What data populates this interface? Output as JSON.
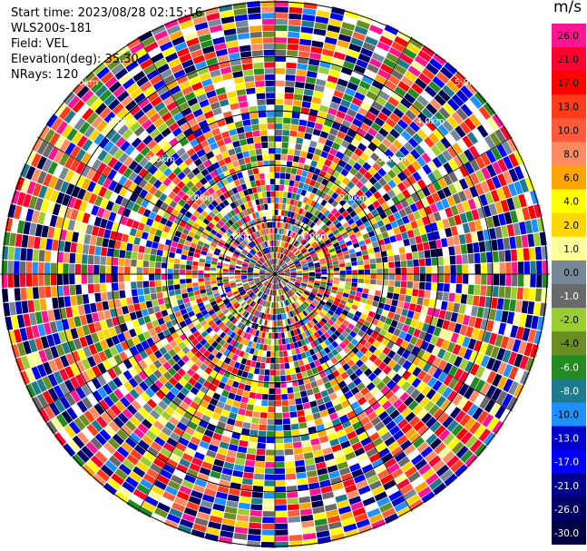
{
  "header": {
    "start_time": "Start time: 2023/08/28 02:15:16",
    "instrument": "WLS200s-181",
    "field": "Field: VEL",
    "elevation": "Elevation(deg): 35.30",
    "nrays": "NRays: 120"
  },
  "colorbar": {
    "unit": "m/s",
    "levels": [
      {
        "label": "26.0",
        "color": "#ff1493"
      },
      {
        "label": "21.0",
        "color": "#ff0033"
      },
      {
        "label": "17.0",
        "color": "#ff0000"
      },
      {
        "label": "13.0",
        "color": "#ff3b1a"
      },
      {
        "label": "10.0",
        "color": "#ff5a3a"
      },
      {
        "label": "8.0",
        "color": "#ff8c60"
      },
      {
        "label": "6.0",
        "color": "#ffa500"
      },
      {
        "label": "4.0",
        "color": "#ffff00"
      },
      {
        "label": "2.0",
        "color": "#ffd700"
      },
      {
        "label": "1.0",
        "color": "#ffff99"
      },
      {
        "label": "0.0",
        "color": "#778899"
      },
      {
        "label": "-1.0",
        "color": "#696969"
      },
      {
        "label": "-2.0",
        "color": "#9acd32"
      },
      {
        "label": "-4.0",
        "color": "#6b8e23"
      },
      {
        "label": "-6.0",
        "color": "#228b22"
      },
      {
        "label": "-8.0",
        "color": "#1e7b8e"
      },
      {
        "label": "-10.0",
        "color": "#1e90ff"
      },
      {
        "label": "-13.0",
        "color": "#0000cd"
      },
      {
        "label": "-17.0",
        "color": "#0000ff"
      },
      {
        "label": "-21.0",
        "color": "#00008b"
      },
      {
        "label": "-26.0",
        "color": "#000066"
      },
      {
        "label": "-30.0",
        "color": "#000044"
      }
    ]
  },
  "chart_data": {
    "type": "heatmap",
    "plot_kind": "PPI polar display",
    "field": "VEL",
    "nrays": 120,
    "range_ring_labels": [
      "1.0 km",
      "2.0 km",
      "3.0 km",
      "4.0 km",
      "5.0 km"
    ],
    "ring_label_text": [
      "1.0km",
      "1.0km",
      "2.0km",
      "2.0km",
      "3.0km",
      "3.0km",
      "4.0km",
      "4.0km",
      "5.0km",
      "5.0km"
    ],
    "colorbar_range": [
      -30,
      26
    ],
    "grid": true
  }
}
